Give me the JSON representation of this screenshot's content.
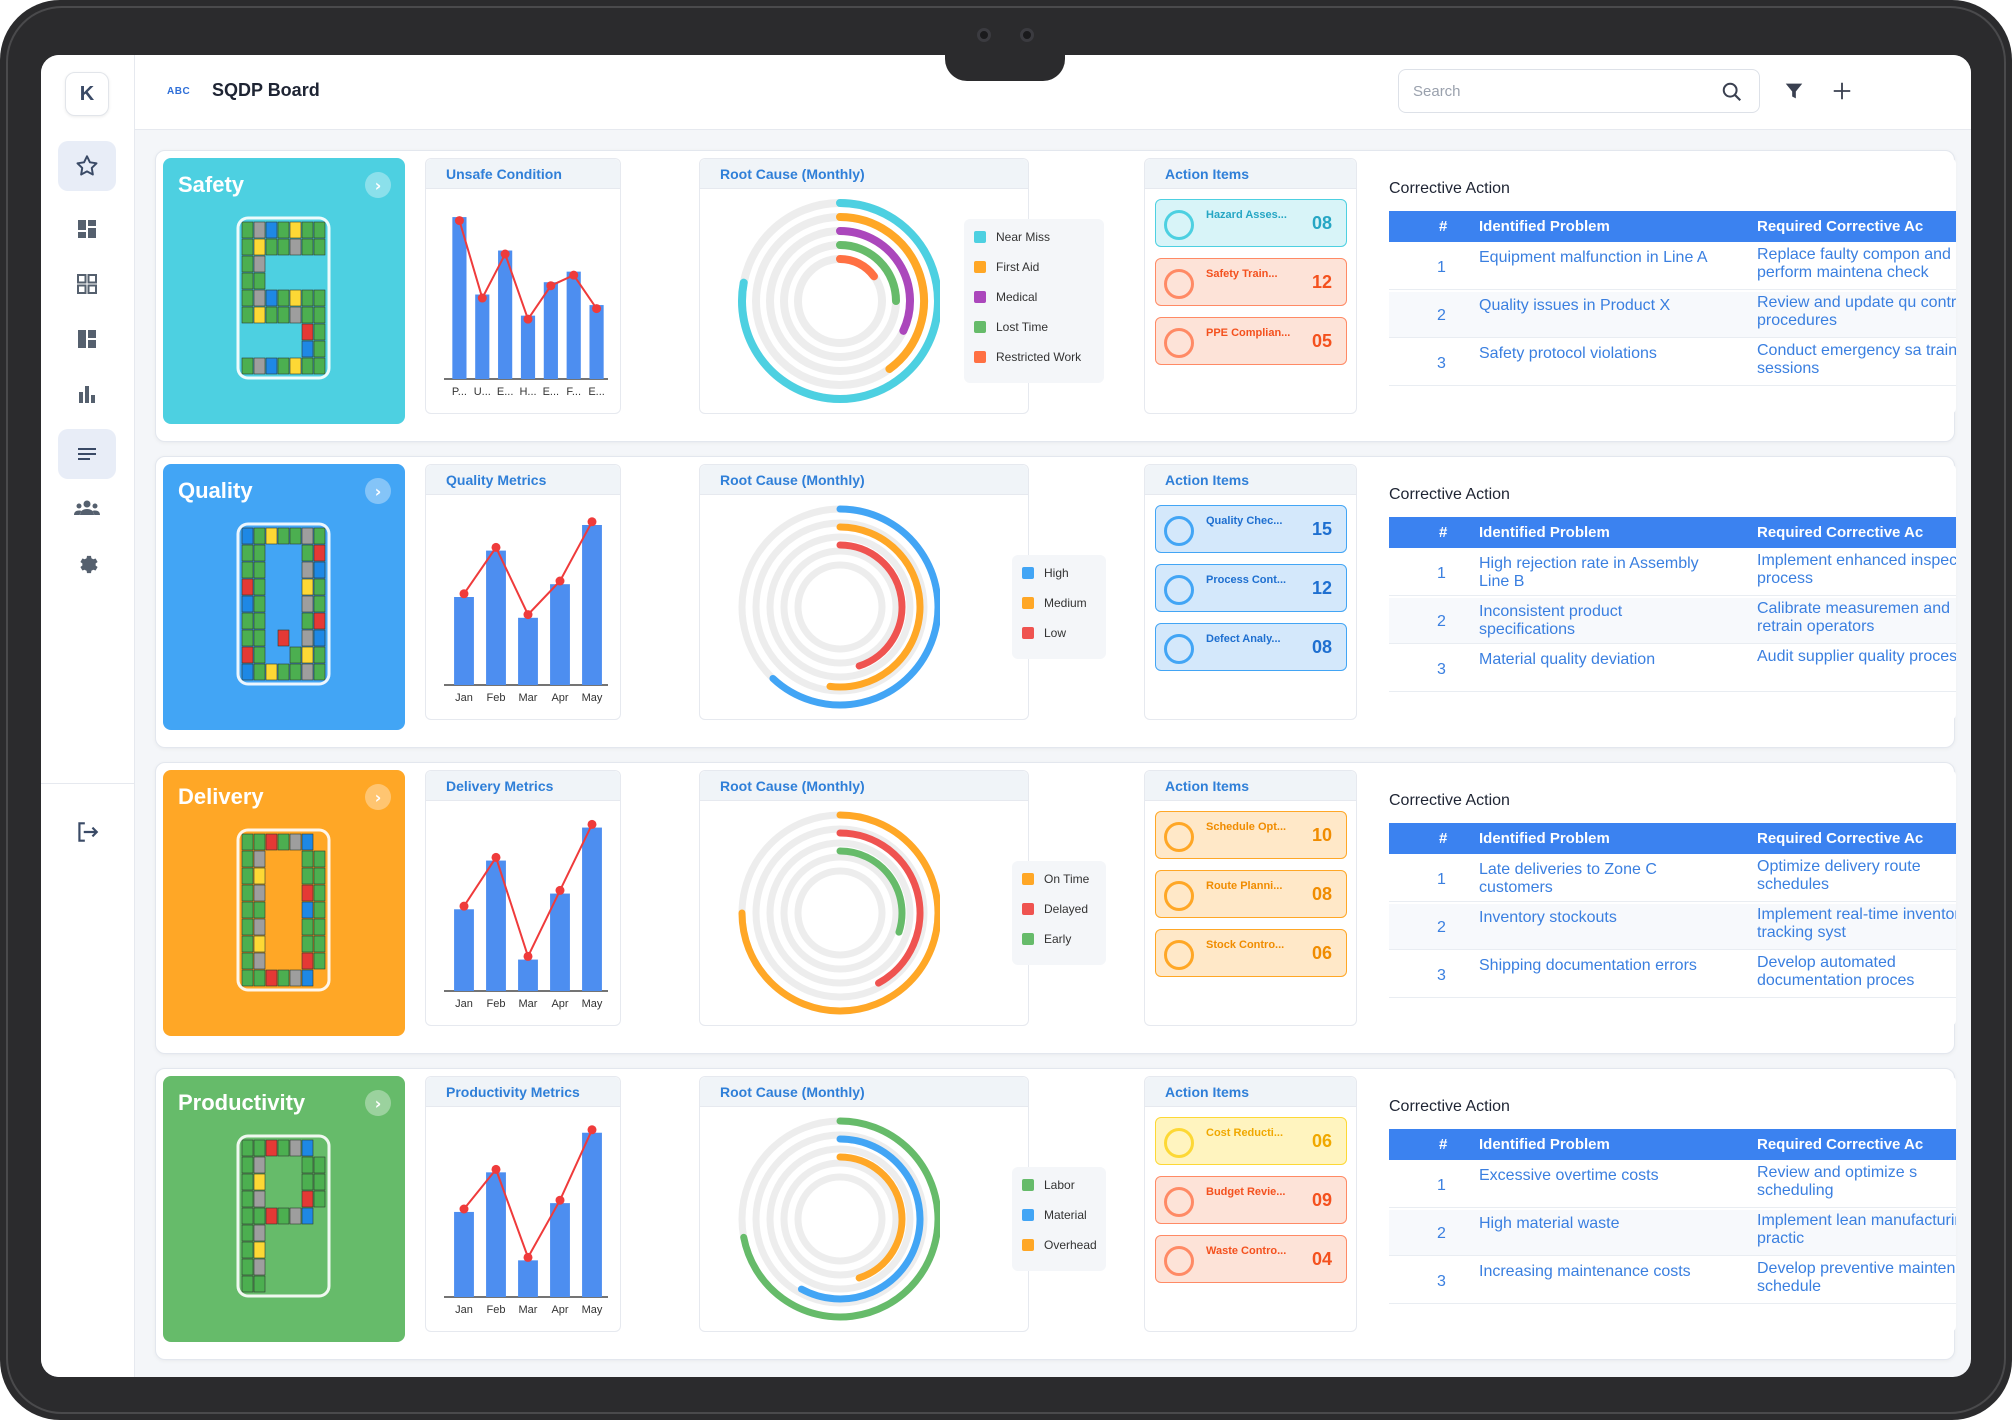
{
  "app": {
    "logo": "K",
    "brand": "ABC",
    "title": "SQDP Board"
  },
  "search": {
    "placeholder": "Search"
  },
  "sidebar": {
    "items": [
      {
        "name": "favorites",
        "icon": "star-icon"
      },
      {
        "name": "dashboard",
        "icon": "dashboard-icon"
      },
      {
        "name": "apps",
        "icon": "grid-icon"
      },
      {
        "name": "layout",
        "icon": "layout-icon"
      },
      {
        "name": "reports",
        "icon": "bar-chart-icon"
      },
      {
        "name": "boards",
        "icon": "list-icon",
        "active": true
      },
      {
        "name": "team",
        "icon": "users-icon"
      },
      {
        "name": "settings",
        "icon": "gear-icon"
      }
    ],
    "logout_icon": "logout-icon"
  },
  "rows": [
    {
      "key": "safety",
      "title": "Safety",
      "color": "#4dd0e1",
      "letter": "S",
      "metrics": {
        "title": "Unsafe Condition",
        "x_labels": [
          "P...",
          "U...",
          "E...",
          "H...",
          "E...",
          "F...",
          "E..."
        ],
        "values": [
          92,
          48,
          73,
          36,
          55,
          61,
          42
        ],
        "line": [
          90,
          46,
          71,
          34,
          53,
          59,
          40
        ],
        "ymax": 100
      },
      "root": {
        "title": "Root Cause (Monthly)",
        "legend": [
          {
            "label": "Near Miss",
            "color": "#4dd0e1",
            "fraction": 0.78
          },
          {
            "label": "First Aid",
            "color": "#ffa726",
            "fraction": 0.4
          },
          {
            "label": "Medical",
            "color": "#ab47bc",
            "fraction": 0.32
          },
          {
            "label": "Lost Time",
            "color": "#66bb6a",
            "fraction": 0.25
          },
          {
            "label": "Restricted Work",
            "color": "#ff7043",
            "fraction": 0.15
          }
        ]
      },
      "actions": {
        "title": "Action Items",
        "items": [
          {
            "label": "Hazard Asses...",
            "count": "08",
            "bg": "#d8f4f8",
            "border": "#4dd0e1",
            "fg": "#26a6c4"
          },
          {
            "label": "Safety Train...",
            "count": "12",
            "bg": "#fde3d8",
            "border": "#ff8a65",
            "fg": "#f4511e"
          },
          {
            "label": "PPE Complian...",
            "count": "05",
            "bg": "#fde3d8",
            "border": "#ff8a65",
            "fg": "#f4511e"
          }
        ]
      },
      "corrective": {
        "title": "Corrective Action",
        "headers": [
          "#",
          "Identified Problem",
          "Required Corrective Ac"
        ],
        "rows": [
          {
            "n": "1",
            "problem": "Equipment malfunction in Line A",
            "action": "Replace faulty compon and perform maintena check"
          },
          {
            "n": "2",
            "problem": "Quality issues in Product X",
            "action": "Review and update qu control procedures"
          },
          {
            "n": "3",
            "problem": "Safety protocol violations",
            "action": "Conduct emergency sa training sessions"
          }
        ]
      }
    },
    {
      "key": "quality",
      "title": "Quality",
      "color": "#42a5f5",
      "letter": "Q",
      "metrics": {
        "title": "Quality Metrics",
        "x_labels": [
          "Jan",
          "Feb",
          "Mar",
          "Apr",
          "May"
        ],
        "values": [
          55,
          84,
          42,
          63,
          100
        ],
        "line": [
          57,
          86,
          44,
          65,
          102
        ],
        "ymax": 110
      },
      "root": {
        "title": "Root Cause (Monthly)",
        "legend": [
          {
            "label": "High",
            "color": "#42a5f5",
            "fraction": 0.62
          },
          {
            "label": "Medium",
            "color": "#ffa726",
            "fraction": 0.52
          },
          {
            "label": "Low",
            "color": "#ef5350",
            "fraction": 0.45
          }
        ]
      },
      "actions": {
        "title": "Action Items",
        "items": [
          {
            "label": "Quality Chec...",
            "count": "15",
            "bg": "#d4e8fb",
            "border": "#42a5f5",
            "fg": "#1e6fd0"
          },
          {
            "label": "Process Cont...",
            "count": "12",
            "bg": "#d4e8fb",
            "border": "#42a5f5",
            "fg": "#1e6fd0"
          },
          {
            "label": "Defect Analy...",
            "count": "08",
            "bg": "#d4e8fb",
            "border": "#42a5f5",
            "fg": "#1e6fd0"
          }
        ]
      },
      "corrective": {
        "title": "Corrective Action",
        "headers": [
          "#",
          "Identified Problem",
          "Required Corrective Ac"
        ],
        "rows": [
          {
            "n": "1",
            "problem": "High rejection rate in Assembly Line B",
            "action": "Implement enhanced inspection process"
          },
          {
            "n": "2",
            "problem": "Inconsistent product specifications",
            "action": "Calibrate measuremen and retrain operators"
          },
          {
            "n": "3",
            "problem": "Material quality deviation",
            "action": "Audit supplier quality processes"
          }
        ]
      }
    },
    {
      "key": "delivery",
      "title": "Delivery",
      "color": "#ffa726",
      "letter": "D",
      "metrics": {
        "title": "Delivery Metrics",
        "x_labels": [
          "Jan",
          "Feb",
          "Mar",
          "Apr",
          "May"
        ],
        "values": [
          52,
          83,
          20,
          62,
          104
        ],
        "line": [
          54,
          85,
          22,
          64,
          106
        ],
        "ymax": 112
      },
      "root": {
        "title": "Root Cause (Monthly)",
        "legend": [
          {
            "label": "On Time",
            "color": "#ffa726",
            "fraction": 0.75
          },
          {
            "label": "Delayed",
            "color": "#ef5350",
            "fraction": 0.42
          },
          {
            "label": "Early",
            "color": "#66bb6a",
            "fraction": 0.3
          }
        ]
      },
      "actions": {
        "title": "Action Items",
        "items": [
          {
            "label": "Schedule Opt...",
            "count": "10",
            "bg": "#ffe8c8",
            "border": "#ffa726",
            "fg": "#f08c00"
          },
          {
            "label": "Route Planni...",
            "count": "08",
            "bg": "#ffe8c8",
            "border": "#ffa726",
            "fg": "#f08c00"
          },
          {
            "label": "Stock Contro...",
            "count": "06",
            "bg": "#ffe8c8",
            "border": "#ffa726",
            "fg": "#f08c00"
          }
        ]
      },
      "corrective": {
        "title": "Corrective Action",
        "headers": [
          "#",
          "Identified Problem",
          "Required Corrective Ac"
        ],
        "rows": [
          {
            "n": "1",
            "problem": "Late deliveries to Zone C customers",
            "action": "Optimize delivery route schedules"
          },
          {
            "n": "2",
            "problem": "Inventory stockouts",
            "action": "Implement real-time inventory tracking syst"
          },
          {
            "n": "3",
            "problem": "Shipping documentation errors",
            "action": "Develop automated documentation proces"
          }
        ]
      }
    },
    {
      "key": "productivity",
      "title": "Productivity",
      "color": "#66bb6a",
      "letter": "P",
      "metrics": {
        "title": "Productivity Metrics",
        "x_labels": [
          "Jan",
          "Feb",
          "Mar",
          "Apr",
          "May"
        ],
        "values": [
          58,
          85,
          25,
          64,
          112
        ],
        "line": [
          60,
          87,
          27,
          66,
          114
        ],
        "ymax": 120
      },
      "root": {
        "title": "Root Cause (Monthly)",
        "legend": [
          {
            "label": "Labor",
            "color": "#66bb6a",
            "fraction": 0.72
          },
          {
            "label": "Material",
            "color": "#42a5f5",
            "fraction": 0.58
          },
          {
            "label": "Overhead",
            "color": "#ffa726",
            "fraction": 0.45
          }
        ]
      },
      "actions": {
        "title": "Action Items",
        "items": [
          {
            "label": "Cost Reducti...",
            "count": "06",
            "bg": "#fff4bf",
            "border": "#fdd835",
            "fg": "#f0a800"
          },
          {
            "label": "Budget Revie...",
            "count": "09",
            "bg": "#fde3d8",
            "border": "#ff8a65",
            "fg": "#f4511e"
          },
          {
            "label": "Waste Contro...",
            "count": "04",
            "bg": "#fde3d8",
            "border": "#ff8a65",
            "fg": "#f4511e"
          }
        ]
      },
      "corrective": {
        "title": "Corrective Action",
        "headers": [
          "#",
          "Identified Problem",
          "Required Corrective Ac"
        ],
        "rows": [
          {
            "n": "1",
            "problem": "Excessive overtime costs",
            "action": "Review and optimize s scheduling"
          },
          {
            "n": "2",
            "problem": "High material waste",
            "action": "Implement lean manufacturing practic"
          },
          {
            "n": "3",
            "problem": "Increasing maintenance costs",
            "action": "Develop preventive maintenance schedule"
          }
        ]
      }
    }
  ]
}
